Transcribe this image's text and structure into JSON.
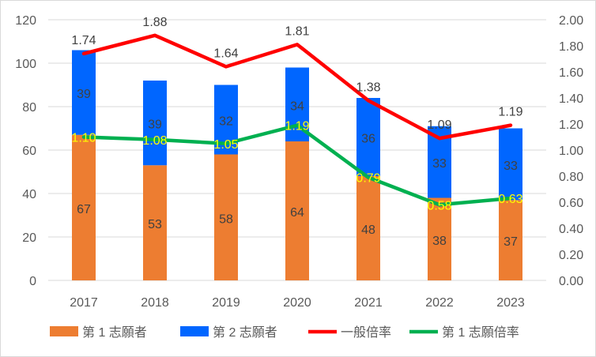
{
  "chart_data": {
    "type": "bar+line",
    "categories": [
      "2017",
      "2018",
      "2019",
      "2020",
      "2021",
      "2022",
      "2023"
    ],
    "stacked_bars": [
      {
        "name": "第 1 志願者",
        "color": "#ed7d31",
        "values": [
          67,
          53,
          58,
          64,
          48,
          38,
          37
        ]
      },
      {
        "name": "第 2 志願者",
        "color": "#0066ff",
        "values": [
          39,
          39,
          32,
          34,
          36,
          33,
          33
        ]
      }
    ],
    "lines": [
      {
        "name": "一般倍率",
        "color": "#ff0000",
        "axis": "right",
        "values": [
          1.74,
          1.88,
          1.64,
          1.81,
          1.38,
          1.09,
          1.19
        ],
        "labels": [
          "1.74",
          "1.88",
          "1.64",
          "1.81",
          "1.38",
          "1.09",
          "1.19"
        ],
        "label_color": "#404040"
      },
      {
        "name": "第 1 志願倍率",
        "color": "#00b050",
        "axis": "right",
        "values": [
          1.1,
          1.08,
          1.05,
          1.19,
          0.79,
          0.58,
          0.63
        ],
        "labels": [
          "1.10",
          "1.08",
          "1.05",
          "1.19",
          "0.79",
          "0.58",
          "0.63"
        ],
        "label_color": "#ffff00"
      }
    ],
    "y_left": {
      "range": [
        0,
        120
      ],
      "ticks": [
        "0",
        "20",
        "40",
        "60",
        "80",
        "100",
        "120"
      ]
    },
    "y_right": {
      "range": [
        0,
        2
      ],
      "ticks": [
        "0.00",
        "0.20",
        "0.40",
        "0.60",
        "0.80",
        "1.00",
        "1.20",
        "1.40",
        "1.60",
        "1.80",
        "2.00"
      ]
    },
    "grid": true,
    "legend": "bottom"
  }
}
